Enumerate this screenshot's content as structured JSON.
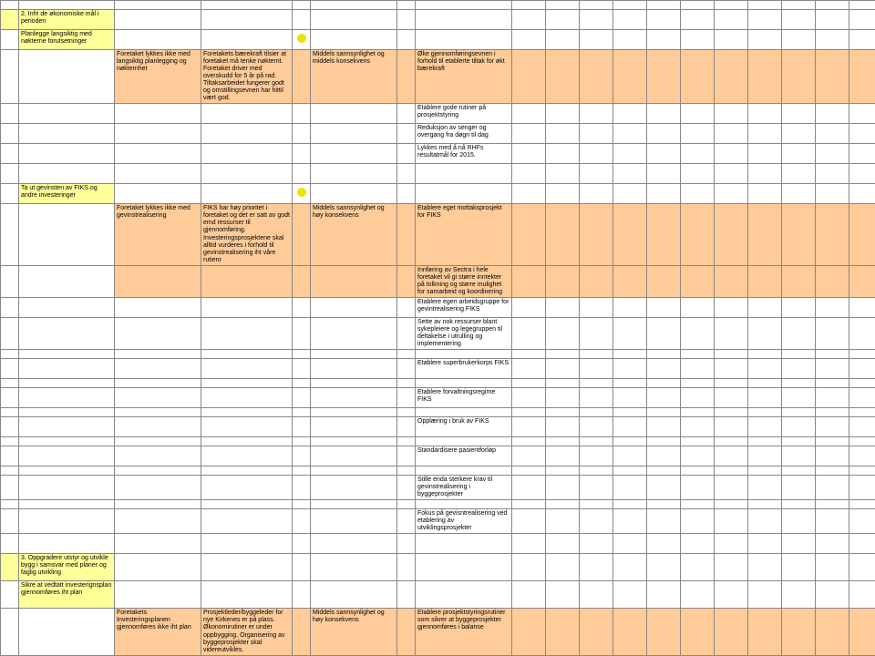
{
  "r2": {
    "col1": "2. Infri de økonomiske mål i perioden"
  },
  "r3": {
    "col1": "Planlegge langsiktig med nøkterne forutsetninger"
  },
  "r4": {
    "col2": "Foretaket lykkes ikke med langsiktig planlegging og nøkternhet",
    "col3": "Foretakets bærekraft tilsier at foretaket må tenke nøkternt. Foretaket driver med overskudd for 5 år på rad. Tiltaksarbeidet fungerer godt og omstillingsevnen har hittil vært god.",
    "col5": "Middels sannsynlighet og middels konsekvens",
    "col7": "Øke gjennomføringsevnen i forhold til etablerte tiltak for økt bærekraft"
  },
  "r5": {
    "col7": "Etablere gode rutiner på prosjektstyring"
  },
  "r6": {
    "col7": "Reduksjon av senger og overgang fra døgn til dag"
  },
  "r7": {
    "col7": "Lykkes med å nå RHFs resultatmål for 2015."
  },
  "r9": {
    "col1": "Ta ut gevinsten av FIKS og andre investeringer"
  },
  "r10": {
    "col2": "Foretaket lykkes ikke med gevinstrealisering",
    "col3": "FIKS har høy prioritet i foretaket og det er satt av godt emd ressurser til gjennomføring. Investeringsprosjektene skal alltid vurderes i forhold til gevinstrealisering iht våre rutienr",
    "col5": "Middels sannsynlighet og høy konsekvens",
    "col7": "Etablere eget mottaksprosjekt for FIKS"
  },
  "r11": {
    "col7": "Innføring av Sectra i hele foretaket vil gi større inntekter på tolkning og større mulighet for samarbeid og koordinering"
  },
  "r12": {
    "col7": "Etablere egen arbeidsgruppe for gevintrealisering FIKS"
  },
  "r13": {
    "col7": "Sette av nok ressurser blant sykepleiere og legegruppen til deltakelse i utrulling og implementering"
  },
  "r15": {
    "col7": "Etablere superbrukerkorps FIKS"
  },
  "r17": {
    "col7": "Etablere forvaltningsregime FIKS"
  },
  "r19": {
    "col7": "Opplæring i bruk av FIKS"
  },
  "r21": {
    "col7": "Standardisere pasientforløp"
  },
  "r23": {
    "col7": "Stille enda sterkere krav til gevinstrealisering i byggeprosjekter"
  },
  "r25": {
    "col7": "Fokus på gevisntrealisering ved etablering av utviklingsprosjekter"
  },
  "r27": {
    "col1": "3. Oppgradere utstyr og utvikle bygg i samsvar med planer og faglig utvikling"
  },
  "r28": {
    "col2": "Sikre at vedtatt investerignsplan gjennomføres iht plan"
  },
  "r29": {
    "col2": "Foretakets Investeringsplanen gjennomføres ikke iht plan",
    "col3": "Prosjektleder/byggeleder for nye Kirkenes er på plass. Økonomirutiner er under oppbygging. Organisering av byggeprosjekter skal videreutvikles.",
    "col5": "Middels sannsynlighet og høy konsekvens",
    "col7": "Etablere prosjektstyringsrutiner som sikrer at byggeprosjekter gjennomføres i balanse"
  },
  "colors": {
    "yellow": "#ffff99",
    "orange": "#ffcc99",
    "dotYellow": "#e6e600",
    "border": "#888888"
  }
}
